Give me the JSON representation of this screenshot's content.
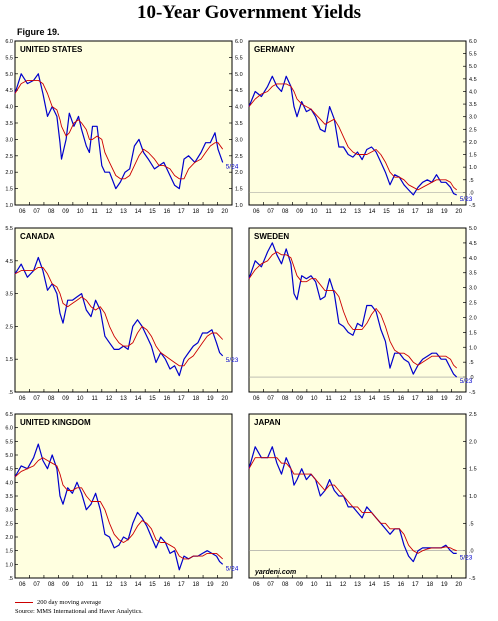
{
  "title": "10-Year Government Yields",
  "figure": "Figure 19.",
  "watermark": "yardeni.com",
  "legend": {
    "ma_label": "200 day moving average",
    "source": "Source: MMS International and Haver Analytics."
  },
  "colors": {
    "panel_bg": "#ffffe0",
    "series": "#0000cc",
    "ma": "#cc0000",
    "zero_line": "#999999"
  },
  "x_ticks": [
    "06",
    "07",
    "08",
    "09",
    "10",
    "11",
    "12",
    "13",
    "14",
    "15",
    "16",
    "17",
    "18",
    "19",
    "20"
  ],
  "chart_data": [
    {
      "type": "line",
      "title": "UNITED STATES",
      "annotation": "5/24",
      "xlim": [
        2006,
        2020
      ],
      "ylim": [
        1.0,
        6.0
      ],
      "y_ticks_left": [
        "1.0",
        "1.5",
        "2.0",
        "2.5",
        "3.0",
        "3.5",
        "4.0",
        "4.5",
        "5.0",
        "5.5",
        "6.0"
      ],
      "y_ticks_right": [
        "1.0",
        "1.5",
        "2.0",
        "2.5",
        "3.0",
        "3.5",
        "4.0",
        "4.5",
        "5.0",
        "5.5",
        "6.0"
      ],
      "x": [
        2006.0,
        2006.4,
        2006.8,
        2007.2,
        2007.5,
        2007.8,
        2008.1,
        2008.4,
        2008.7,
        2008.9,
        2009.0,
        2009.3,
        2009.5,
        2009.8,
        2010.1,
        2010.3,
        2010.6,
        2010.8,
        2011.0,
        2011.3,
        2011.6,
        2011.8,
        2012.1,
        2012.5,
        2012.8,
        2013.1,
        2013.4,
        2013.7,
        2014.0,
        2014.3,
        2014.6,
        2015.0,
        2015.3,
        2015.6,
        2016.0,
        2016.3,
        2016.6,
        2016.9,
        2017.2,
        2017.6,
        2018.0,
        2018.3,
        2018.6,
        2018.9,
        2019.1,
        2019.4
      ],
      "series": [
        {
          "name": "",
          "values": [
            4.4,
            5.0,
            4.7,
            4.8,
            5.0,
            4.4,
            3.7,
            4.0,
            3.7,
            2.9,
            2.4,
            3.0,
            3.8,
            3.4,
            3.7,
            3.3,
            2.8,
            2.6,
            3.4,
            3.4,
            2.2,
            2.0,
            2.0,
            1.5,
            1.7,
            2.0,
            2.1,
            2.8,
            3.0,
            2.6,
            2.4,
            2.1,
            2.2,
            2.3,
            1.9,
            1.6,
            1.5,
            2.4,
            2.5,
            2.3,
            2.6,
            2.9,
            2.9,
            3.2,
            2.7,
            2.3
          ]
        },
        {
          "name": "200 day moving average",
          "values": [
            4.4,
            4.7,
            4.8,
            4.8,
            4.8,
            4.7,
            4.4,
            4.0,
            3.9,
            3.6,
            3.4,
            3.1,
            3.2,
            3.5,
            3.6,
            3.5,
            3.3,
            3.0,
            3.0,
            3.1,
            3.0,
            2.6,
            2.3,
            1.9,
            1.8,
            1.8,
            1.9,
            2.2,
            2.5,
            2.7,
            2.6,
            2.4,
            2.2,
            2.2,
            2.1,
            1.9,
            1.8,
            1.8,
            2.1,
            2.3,
            2.4,
            2.6,
            2.8,
            2.9,
            2.9,
            2.7
          ]
        }
      ]
    },
    {
      "type": "line",
      "title": "GERMANY",
      "annotation": "5/23",
      "xlim": [
        2006,
        2020
      ],
      "ylim": [
        -0.5,
        6.0
      ],
      "y_ticks_left": [],
      "y_ticks_right": [
        "-.5",
        ".0",
        ".5",
        "1.0",
        "1.5",
        "2.0",
        "2.5",
        "3.0",
        "3.5",
        "4.0",
        "4.5",
        "5.0",
        "5.5",
        "6.0"
      ],
      "zero_line": 0,
      "x": [
        2006.0,
        2006.4,
        2006.8,
        2007.2,
        2007.5,
        2007.8,
        2008.1,
        2008.4,
        2008.7,
        2008.9,
        2009.1,
        2009.4,
        2009.7,
        2010.0,
        2010.3,
        2010.6,
        2010.9,
        2011.2,
        2011.5,
        2011.8,
        2012.1,
        2012.4,
        2012.7,
        2013.0,
        2013.3,
        2013.6,
        2013.9,
        2014.2,
        2014.5,
        2014.8,
        2015.1,
        2015.4,
        2015.7,
        2016.0,
        2016.3,
        2016.6,
        2016.9,
        2017.2,
        2017.5,
        2017.8,
        2018.1,
        2018.4,
        2018.7,
        2019.0,
        2019.2,
        2019.4
      ],
      "series": [
        {
          "name": "",
          "values": [
            3.4,
            4.0,
            3.8,
            4.2,
            4.6,
            4.2,
            4.0,
            4.6,
            4.2,
            3.4,
            3.0,
            3.6,
            3.2,
            3.3,
            3.0,
            2.5,
            2.4,
            3.4,
            2.9,
            1.8,
            1.8,
            1.5,
            1.4,
            1.6,
            1.3,
            1.7,
            1.8,
            1.6,
            1.2,
            0.8,
            0.3,
            0.7,
            0.6,
            0.3,
            0.1,
            -0.1,
            0.2,
            0.4,
            0.5,
            0.4,
            0.7,
            0.4,
            0.4,
            0.2,
            -0.05,
            -0.1
          ]
        },
        {
          "name": "200 day moving average",
          "values": [
            3.4,
            3.7,
            3.9,
            4.0,
            4.2,
            4.3,
            4.3,
            4.3,
            4.2,
            4.0,
            3.7,
            3.5,
            3.4,
            3.3,
            3.1,
            2.9,
            2.7,
            2.8,
            2.9,
            2.6,
            2.2,
            1.8,
            1.6,
            1.5,
            1.5,
            1.5,
            1.6,
            1.7,
            1.5,
            1.2,
            0.8,
            0.6,
            0.6,
            0.5,
            0.3,
            0.2,
            0.1,
            0.2,
            0.3,
            0.4,
            0.5,
            0.5,
            0.5,
            0.4,
            0.2,
            0.1
          ]
        }
      ]
    },
    {
      "type": "line",
      "title": "CANADA",
      "annotation": "5/23",
      "xlim": [
        2006,
        2020
      ],
      "ylim": [
        0.5,
        5.5
      ],
      "y_ticks_left": [
        ".5",
        "1.5",
        "2.5",
        "3.5",
        "4.5",
        "5.5"
      ],
      "y_ticks_right": [],
      "x": [
        2006.0,
        2006.4,
        2006.8,
        2007.2,
        2007.5,
        2007.8,
        2008.1,
        2008.4,
        2008.7,
        2008.9,
        2009.1,
        2009.4,
        2009.7,
        2010.0,
        2010.3,
        2010.6,
        2010.9,
        2011.2,
        2011.5,
        2011.8,
        2012.1,
        2012.4,
        2012.7,
        2013.0,
        2013.3,
        2013.6,
        2013.9,
        2014.2,
        2014.5,
        2014.8,
        2015.1,
        2015.4,
        2015.7,
        2016.0,
        2016.3,
        2016.6,
        2016.9,
        2017.2,
        2017.5,
        2017.8,
        2018.1,
        2018.4,
        2018.7,
        2019.0,
        2019.2,
        2019.4
      ],
      "series": [
        {
          "name": "",
          "values": [
            4.1,
            4.4,
            4.0,
            4.2,
            4.6,
            4.2,
            3.6,
            3.8,
            3.5,
            2.9,
            2.6,
            3.3,
            3.3,
            3.4,
            3.5,
            3.0,
            2.8,
            3.3,
            3.0,
            2.2,
            2.0,
            1.8,
            1.8,
            1.9,
            1.8,
            2.5,
            2.7,
            2.5,
            2.2,
            1.9,
            1.4,
            1.7,
            1.5,
            1.2,
            1.3,
            1.0,
            1.5,
            1.7,
            1.9,
            2.0,
            2.3,
            2.3,
            2.4,
            2.0,
            1.7,
            1.6
          ]
        },
        {
          "name": "200 day moving average",
          "values": [
            4.1,
            4.2,
            4.2,
            4.2,
            4.3,
            4.3,
            4.1,
            3.8,
            3.7,
            3.5,
            3.2,
            3.1,
            3.2,
            3.3,
            3.4,
            3.3,
            3.1,
            3.0,
            3.1,
            2.9,
            2.5,
            2.2,
            2.0,
            1.9,
            1.9,
            2.0,
            2.3,
            2.5,
            2.4,
            2.2,
            1.9,
            1.7,
            1.6,
            1.5,
            1.4,
            1.3,
            1.3,
            1.5,
            1.6,
            1.8,
            2.0,
            2.2,
            2.3,
            2.3,
            2.2,
            2.1
          ]
        }
      ]
    },
    {
      "type": "line",
      "title": "SWEDEN",
      "annotation": "5/23",
      "xlim": [
        2006,
        2020
      ],
      "ylim": [
        -0.5,
        5.0
      ],
      "y_ticks_left": [],
      "y_ticks_right": [
        "-.5",
        ".0",
        ".5",
        "1.0",
        "1.5",
        "2.0",
        "2.5",
        "3.0",
        "3.5",
        "4.0",
        "4.5",
        "5.0"
      ],
      "zero_line": 0,
      "x": [
        2006.0,
        2006.4,
        2006.8,
        2007.2,
        2007.5,
        2007.8,
        2008.1,
        2008.4,
        2008.7,
        2008.9,
        2009.1,
        2009.4,
        2009.7,
        2010.0,
        2010.3,
        2010.6,
        2010.9,
        2011.2,
        2011.5,
        2011.8,
        2012.1,
        2012.4,
        2012.7,
        2013.0,
        2013.3,
        2013.6,
        2013.9,
        2014.2,
        2014.5,
        2014.8,
        2015.1,
        2015.4,
        2015.7,
        2016.0,
        2016.3,
        2016.6,
        2016.9,
        2017.2,
        2017.5,
        2017.8,
        2018.1,
        2018.4,
        2018.7,
        2019.0,
        2019.2,
        2019.4
      ],
      "series": [
        {
          "name": "",
          "values": [
            3.3,
            3.9,
            3.7,
            4.2,
            4.5,
            4.1,
            3.8,
            4.3,
            3.8,
            2.8,
            2.6,
            3.4,
            3.3,
            3.4,
            3.2,
            2.6,
            2.7,
            3.3,
            2.8,
            1.8,
            1.7,
            1.5,
            1.4,
            1.8,
            1.7,
            2.4,
            2.4,
            2.2,
            1.6,
            1.2,
            0.3,
            0.8,
            0.8,
            0.6,
            0.5,
            0.1,
            0.4,
            0.6,
            0.7,
            0.8,
            0.8,
            0.6,
            0.6,
            0.3,
            0.1,
            0.0
          ]
        },
        {
          "name": "200 day moving average",
          "values": [
            3.3,
            3.6,
            3.8,
            3.9,
            4.1,
            4.2,
            4.1,
            4.1,
            4.0,
            3.7,
            3.4,
            3.2,
            3.2,
            3.3,
            3.3,
            3.1,
            2.9,
            2.9,
            2.9,
            2.7,
            2.2,
            1.8,
            1.6,
            1.6,
            1.6,
            1.8,
            2.1,
            2.3,
            2.1,
            1.7,
            1.2,
            0.9,
            0.8,
            0.8,
            0.7,
            0.5,
            0.4,
            0.5,
            0.6,
            0.7,
            0.7,
            0.7,
            0.7,
            0.6,
            0.4,
            0.3
          ]
        }
      ]
    },
    {
      "type": "line",
      "title": "UNITED KINGDOM",
      "annotation": "5/24",
      "xlim": [
        2006,
        2020
      ],
      "ylim": [
        0.5,
        6.5
      ],
      "y_ticks_left": [
        ".5",
        "1.0",
        "1.5",
        "2.0",
        "2.5",
        "3.0",
        "3.5",
        "4.0",
        "4.5",
        "5.0",
        "5.5",
        "6.0",
        "6.5"
      ],
      "y_ticks_right": [],
      "x": [
        2006.0,
        2006.4,
        2006.8,
        2007.2,
        2007.5,
        2007.8,
        2008.1,
        2008.4,
        2008.7,
        2008.9,
        2009.1,
        2009.4,
        2009.7,
        2010.0,
        2010.3,
        2010.6,
        2010.9,
        2011.2,
        2011.5,
        2011.8,
        2012.1,
        2012.4,
        2012.7,
        2013.0,
        2013.3,
        2013.6,
        2013.9,
        2014.2,
        2014.5,
        2014.8,
        2015.1,
        2015.4,
        2015.7,
        2016.0,
        2016.3,
        2016.6,
        2016.9,
        2017.2,
        2017.5,
        2017.8,
        2018.1,
        2018.4,
        2018.7,
        2019.0,
        2019.2,
        2019.4
      ],
      "series": [
        {
          "name": "",
          "values": [
            4.2,
            4.6,
            4.5,
            4.9,
            5.4,
            4.8,
            4.5,
            5.0,
            4.5,
            3.5,
            3.2,
            3.8,
            3.6,
            4.0,
            3.6,
            3.0,
            3.2,
            3.6,
            3.0,
            2.1,
            2.0,
            1.6,
            1.7,
            2.0,
            1.9,
            2.5,
            2.9,
            2.7,
            2.4,
            2.0,
            1.6,
            2.0,
            1.8,
            1.4,
            1.5,
            0.8,
            1.3,
            1.2,
            1.3,
            1.3,
            1.4,
            1.5,
            1.4,
            1.3,
            1.1,
            1.0
          ]
        },
        {
          "name": "200 day moving average",
          "values": [
            4.2,
            4.4,
            4.5,
            4.6,
            4.8,
            4.9,
            4.8,
            4.7,
            4.6,
            4.3,
            3.9,
            3.7,
            3.7,
            3.8,
            3.8,
            3.5,
            3.3,
            3.3,
            3.3,
            3.0,
            2.5,
            2.1,
            1.9,
            1.8,
            1.9,
            2.1,
            2.4,
            2.6,
            2.5,
            2.3,
            1.9,
            1.8,
            1.8,
            1.7,
            1.6,
            1.3,
            1.2,
            1.2,
            1.3,
            1.3,
            1.3,
            1.4,
            1.4,
            1.4,
            1.3,
            1.2
          ]
        }
      ]
    },
    {
      "type": "line",
      "title": "JAPAN",
      "annotation": "5/23",
      "xlim": [
        2006,
        2020
      ],
      "ylim": [
        -0.5,
        2.5
      ],
      "y_ticks_left": [],
      "y_ticks_right": [
        "-.5",
        ".0",
        ".5",
        "1.0",
        "1.5",
        "2.0",
        "2.5"
      ],
      "zero_line": 0,
      "x": [
        2006.0,
        2006.4,
        2006.8,
        2007.2,
        2007.5,
        2007.8,
        2008.1,
        2008.4,
        2008.7,
        2008.9,
        2009.1,
        2009.4,
        2009.7,
        2010.0,
        2010.3,
        2010.6,
        2010.9,
        2011.2,
        2011.5,
        2011.8,
        2012.1,
        2012.4,
        2012.7,
        2013.0,
        2013.3,
        2013.6,
        2013.9,
        2014.2,
        2014.5,
        2014.8,
        2015.1,
        2015.4,
        2015.7,
        2016.0,
        2016.3,
        2016.6,
        2016.9,
        2017.2,
        2017.5,
        2017.8,
        2018.1,
        2018.4,
        2018.7,
        2019.0,
        2019.2,
        2019.4
      ],
      "series": [
        {
          "name": "",
          "values": [
            1.5,
            1.9,
            1.7,
            1.7,
            1.9,
            1.6,
            1.4,
            1.7,
            1.5,
            1.2,
            1.3,
            1.5,
            1.3,
            1.4,
            1.3,
            1.0,
            1.1,
            1.3,
            1.1,
            1.0,
            1.0,
            0.8,
            0.8,
            0.7,
            0.6,
            0.8,
            0.7,
            0.6,
            0.5,
            0.4,
            0.3,
            0.4,
            0.4,
            0.1,
            -0.1,
            -0.2,
            0.0,
            0.05,
            0.05,
            0.05,
            0.05,
            0.05,
            0.1,
            0.0,
            -0.05,
            -0.05
          ]
        },
        {
          "name": "200 day moving average",
          "values": [
            1.5,
            1.7,
            1.7,
            1.7,
            1.7,
            1.7,
            1.6,
            1.6,
            1.5,
            1.4,
            1.4,
            1.4,
            1.4,
            1.4,
            1.3,
            1.2,
            1.1,
            1.2,
            1.2,
            1.1,
            1.0,
            0.9,
            0.8,
            0.8,
            0.7,
            0.7,
            0.7,
            0.6,
            0.5,
            0.5,
            0.4,
            0.4,
            0.4,
            0.3,
            0.1,
            0.0,
            -0.05,
            0.0,
            0.03,
            0.05,
            0.05,
            0.05,
            0.07,
            0.05,
            0.02,
            0.0
          ]
        }
      ]
    }
  ]
}
